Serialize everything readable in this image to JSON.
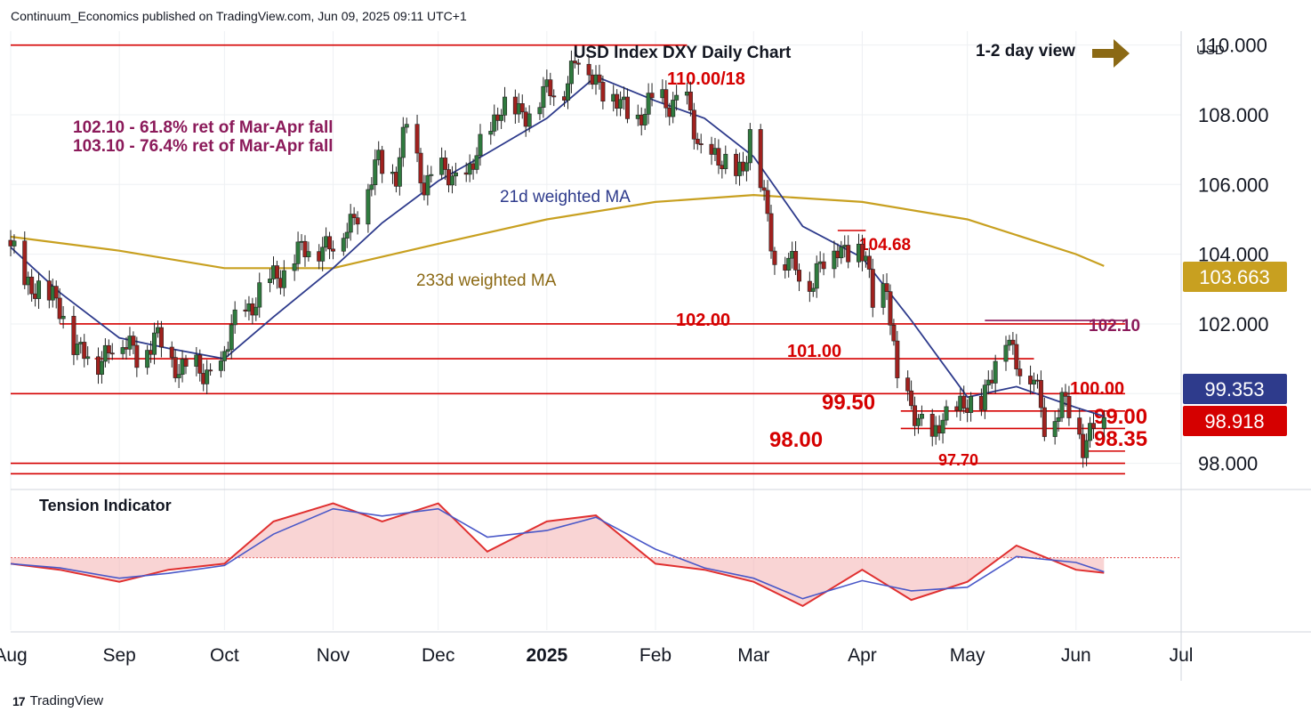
{
  "header": {
    "publisher_line": "Continuum_Economics published on TradingView.com, Jun 09, 2025 09:11 UTC+1"
  },
  "footer": {
    "brand": "TradingView",
    "logo_glyph": "17"
  },
  "chart_data": {
    "type": "candlestick",
    "title": "USD Index DXY Daily Chart",
    "view_label": "1-2 day view",
    "currency_label": "USD",
    "ylim": [
      97.3,
      110.4
    ],
    "y_ticks": [
      "110.000",
      "108.000",
      "106.000",
      "104.000",
      "102.000",
      "100.000",
      "98.000"
    ],
    "y_tick_values": [
      110,
      108,
      106,
      104,
      102,
      100,
      98
    ],
    "x_ticks": [
      "Aug",
      "Sep",
      "Oct",
      "Nov",
      "Dec",
      "2025",
      "Feb",
      "Mar",
      "Apr",
      "May",
      "Jun",
      "Jul"
    ],
    "x_tick_dates": [
      "2024-08-01",
      "2024-09-01",
      "2024-10-01",
      "2024-11-01",
      "2024-12-01",
      "2025-01-01",
      "2025-02-01",
      "2025-03-01",
      "2025-04-01",
      "2025-05-01",
      "2025-06-01",
      "2025-07-01"
    ],
    "date_range": [
      "2024-08-01",
      "2025-07-01"
    ],
    "price_badges": [
      {
        "value": "103.663",
        "color": "#c8a020"
      },
      {
        "value": "99.353",
        "color": "#2e3b8c"
      },
      {
        "value": "98.918",
        "color": "#d50000"
      }
    ],
    "levels": [
      {
        "label": "110.00/18",
        "value": 110.0,
        "from": "2024-08-01",
        "to": "2025-02-10"
      },
      {
        "label": "102.00",
        "value": 102.0,
        "from": "2024-08-15",
        "to": "2025-06-15"
      },
      {
        "label": "101.00",
        "value": 101.0,
        "from": "2024-08-25",
        "to": "2025-05-20"
      },
      {
        "label": "",
        "value": 100.0,
        "from": "2024-08-01",
        "to": "2025-05-27"
      },
      {
        "label": "100.00",
        "value": 100.0,
        "from": "2025-05-27",
        "to": "2025-06-15"
      },
      {
        "label": "99.50",
        "value": 99.5,
        "from": "2025-04-12",
        "to": "2025-06-15"
      },
      {
        "label": "99.00",
        "value": 99.0,
        "from": "2025-04-12",
        "to": "2025-06-15"
      },
      {
        "label": "98.35",
        "value": 98.35,
        "from": "2025-06-03",
        "to": "2025-06-15"
      },
      {
        "label": "98.00",
        "value": 98.0,
        "from": "2024-08-01",
        "to": "2025-06-15"
      },
      {
        "label": "97.70",
        "value": 97.7,
        "from": "2024-08-01",
        "to": "2025-06-15"
      },
      {
        "label": "104.68",
        "value": 104.68,
        "from": "2025-03-25",
        "to": "2025-04-02"
      },
      {
        "label": "102.10",
        "value": 102.1,
        "from": "2025-05-06",
        "to": "2025-06-15"
      }
    ],
    "annotations": [
      "102.10 - 61.8% ret of Mar-Apr fall",
      "103.10 - 76.4% ret of Mar-Apr fall"
    ],
    "ma_labels": {
      "ma21": "21d weighted MA",
      "ma233": "233d weighted MA"
    },
    "price_path": [
      [
        "2024-08-01",
        104.4
      ],
      [
        "2024-08-05",
        102.9
      ],
      [
        "2024-08-09",
        103.2
      ],
      [
        "2024-08-14",
        102.5
      ],
      [
        "2024-08-20",
        101.4
      ],
      [
        "2024-08-26",
        100.8
      ],
      [
        "2024-08-30",
        101.6
      ],
      [
        "2024-09-06",
        101.1
      ],
      [
        "2024-09-11",
        101.6
      ],
      [
        "2024-09-16",
        100.9
      ],
      [
        "2024-09-20",
        100.8
      ],
      [
        "2024-09-25",
        100.5
      ],
      [
        "2024-09-30",
        100.7
      ],
      [
        "2024-10-03",
        101.8
      ],
      [
        "2024-10-08",
        102.5
      ],
      [
        "2024-10-14",
        103.2
      ],
      [
        "2024-10-21",
        103.9
      ],
      [
        "2024-10-28",
        104.3
      ],
      [
        "2024-11-01",
        104.2
      ],
      [
        "2024-11-06",
        105.0
      ],
      [
        "2024-11-11",
        105.8
      ],
      [
        "2024-11-14",
        106.7
      ],
      [
        "2024-11-19",
        106.3
      ],
      [
        "2024-11-22",
        107.6
      ],
      [
        "2024-11-27",
        106.1
      ],
      [
        "2024-12-03",
        106.3
      ],
      [
        "2024-12-09",
        106.1
      ],
      [
        "2024-12-13",
        107.0
      ],
      [
        "2024-12-19",
        108.3
      ],
      [
        "2024-12-24",
        108.0
      ],
      [
        "2024-12-31",
        108.5
      ],
      [
        "2025-01-06",
        108.9
      ],
      [
        "2025-01-10",
        109.6
      ],
      [
        "2025-01-14",
        109.2
      ],
      [
        "2025-01-20",
        108.4
      ],
      [
        "2025-01-27",
        107.9
      ],
      [
        "2025-02-03",
        108.5
      ],
      [
        "2025-02-10",
        108.2
      ],
      [
        "2025-02-14",
        107.0
      ],
      [
        "2025-02-20",
        106.5
      ],
      [
        "2025-02-26",
        106.5
      ],
      [
        "2025-02-28",
        107.4
      ],
      [
        "2025-03-04",
        105.6
      ],
      [
        "2025-03-07",
        104.0
      ],
      [
        "2025-03-12",
        103.6
      ],
      [
        "2025-03-18",
        103.3
      ],
      [
        "2025-03-25",
        104.3
      ],
      [
        "2025-03-28",
        104.1
      ],
      [
        "2025-04-02",
        103.9
      ],
      [
        "2025-04-04",
        102.6
      ],
      [
        "2025-04-08",
        103.1
      ],
      [
        "2025-04-11",
        100.1
      ],
      [
        "2025-04-15",
        99.8
      ],
      [
        "2025-04-21",
        98.4
      ],
      [
        "2025-04-24",
        99.5
      ],
      [
        "2025-04-30",
        99.5
      ],
      [
        "2025-05-05",
        99.9
      ],
      [
        "2025-05-08",
        100.6
      ],
      [
        "2025-05-12",
        101.6
      ],
      [
        "2025-05-16",
        100.9
      ],
      [
        "2025-05-20",
        100.3
      ],
      [
        "2025-05-23",
        99.1
      ],
      [
        "2025-05-28",
        99.8
      ],
      [
        "2025-05-30",
        99.4
      ],
      [
        "2025-06-03",
        98.6
      ],
      [
        "2025-06-06",
        99.2
      ],
      [
        "2025-06-09",
        98.9
      ]
    ],
    "ma21_path": [
      [
        "2024-08-01",
        104.2
      ],
      [
        "2024-08-15",
        102.9
      ],
      [
        "2024-09-01",
        101.6
      ],
      [
        "2024-09-15",
        101.3
      ],
      [
        "2024-10-01",
        101.0
      ],
      [
        "2024-10-15",
        102.2
      ],
      [
        "2024-11-01",
        103.6
      ],
      [
        "2024-11-15",
        104.9
      ],
      [
        "2024-12-01",
        106.1
      ],
      [
        "2024-12-15",
        106.9
      ],
      [
        "2025-01-01",
        107.9
      ],
      [
        "2025-01-15",
        109.1
      ],
      [
        "2025-02-01",
        108.4
      ],
      [
        "2025-02-15",
        107.9
      ],
      [
        "2025-03-01",
        106.8
      ],
      [
        "2025-03-15",
        104.8
      ],
      [
        "2025-04-01",
        103.9
      ],
      [
        "2025-04-15",
        102.1
      ],
      [
        "2025-05-01",
        99.9
      ],
      [
        "2025-05-15",
        100.2
      ],
      [
        "2025-06-01",
        99.6
      ],
      [
        "2025-06-09",
        99.35
      ]
    ],
    "ma233_path": [
      [
        "2024-08-01",
        104.5
      ],
      [
        "2024-09-01",
        104.1
      ],
      [
        "2024-10-01",
        103.6
      ],
      [
        "2024-11-01",
        103.6
      ],
      [
        "2024-12-01",
        104.3
      ],
      [
        "2025-01-01",
        105.0
      ],
      [
        "2025-02-01",
        105.5
      ],
      [
        "2025-03-01",
        105.7
      ],
      [
        "2025-04-01",
        105.5
      ],
      [
        "2025-05-01",
        105.0
      ],
      [
        "2025-06-01",
        104.0
      ],
      [
        "2025-06-09",
        103.66
      ]
    ],
    "tension_indicator": {
      "label": "Tension Indicator",
      "ylim": [
        -1.2,
        1.1
      ],
      "values": [
        [
          "2024-08-01",
          -0.1
        ],
        [
          "2024-08-15",
          -0.2
        ],
        [
          "2024-09-01",
          -0.4
        ],
        [
          "2024-09-15",
          -0.2
        ],
        [
          "2024-10-01",
          -0.1
        ],
        [
          "2024-10-15",
          0.6
        ],
        [
          "2024-11-01",
          0.9
        ],
        [
          "2024-11-15",
          0.6
        ],
        [
          "2024-12-01",
          0.9
        ],
        [
          "2024-12-15",
          0.1
        ],
        [
          "2025-01-01",
          0.6
        ],
        [
          "2025-01-15",
          0.7
        ],
        [
          "2025-02-01",
          -0.1
        ],
        [
          "2025-02-15",
          -0.2
        ],
        [
          "2025-03-01",
          -0.4
        ],
        [
          "2025-03-15",
          -0.8
        ],
        [
          "2025-04-01",
          -0.2
        ],
        [
          "2025-04-15",
          -0.7
        ],
        [
          "2025-05-01",
          -0.4
        ],
        [
          "2025-05-15",
          0.2
        ],
        [
          "2025-06-01",
          -0.2
        ],
        [
          "2025-06-09",
          -0.25
        ]
      ]
    }
  }
}
